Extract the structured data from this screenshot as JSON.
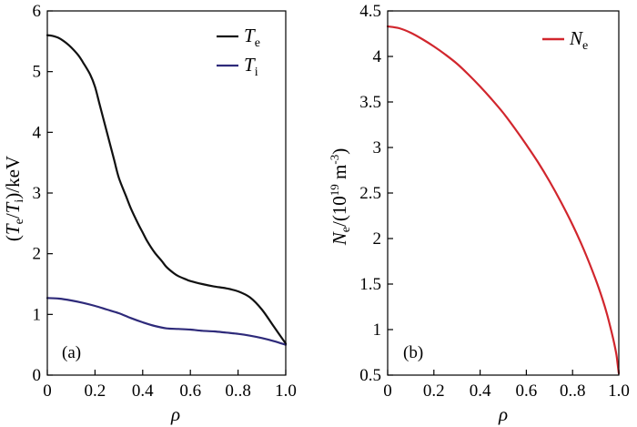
{
  "chart_data": [
    {
      "type": "line",
      "panel_label": "(a)",
      "xlabel": "ρ",
      "ylabel": "(Te/Ti)/keV",
      "ylabel_parts": {
        "open": "(",
        "t1": "T",
        "s1": "e",
        "slash": "/",
        "t2": "T",
        "s2": "i",
        "close": ")/keV"
      },
      "xlim": [
        0,
        1.0
      ],
      "ylim": [
        0,
        6
      ],
      "x_ticks": [
        0,
        0.2,
        0.4,
        0.6,
        0.8,
        1.0
      ],
      "x_tick_labels": [
        "0",
        "0.2",
        "0.4",
        "0.6",
        "0..8",
        "1.0"
      ],
      "y_ticks": [
        0,
        1,
        2,
        3,
        4,
        5,
        6
      ],
      "y_tick_labels": [
        "0",
        "1",
        "2",
        "3",
        "4",
        "5",
        "6"
      ],
      "grid": false,
      "legend_position": "top-right",
      "series": [
        {
          "name": "Te",
          "name_main": "T",
          "name_sub": "e",
          "color": "#111111",
          "x": [
            0,
            0.02,
            0.05,
            0.08,
            0.1,
            0.13,
            0.15,
            0.18,
            0.2,
            0.22,
            0.25,
            0.28,
            0.3,
            0.33,
            0.35,
            0.38,
            0.4,
            0.42,
            0.45,
            0.48,
            0.5,
            0.53,
            0.55,
            0.58,
            0.6,
            0.65,
            0.7,
            0.75,
            0.8,
            0.85,
            0.9,
            0.95,
            1.0
          ],
          "y": [
            5.6,
            5.59,
            5.55,
            5.47,
            5.4,
            5.27,
            5.15,
            4.95,
            4.75,
            4.45,
            4.0,
            3.55,
            3.25,
            2.95,
            2.75,
            2.5,
            2.35,
            2.2,
            2.02,
            1.88,
            1.78,
            1.68,
            1.63,
            1.58,
            1.55,
            1.5,
            1.46,
            1.43,
            1.38,
            1.28,
            1.08,
            0.8,
            0.52
          ]
        },
        {
          "name": "Ti",
          "name_main": "T",
          "name_sub": "i",
          "color": "#2e2a7a",
          "x": [
            0,
            0.05,
            0.1,
            0.15,
            0.2,
            0.25,
            0.3,
            0.35,
            0.4,
            0.45,
            0.5,
            0.55,
            0.6,
            0.65,
            0.7,
            0.75,
            0.8,
            0.85,
            0.9,
            0.95,
            1.0
          ],
          "y": [
            1.27,
            1.26,
            1.23,
            1.19,
            1.14,
            1.08,
            1.02,
            0.94,
            0.87,
            0.81,
            0.77,
            0.76,
            0.75,
            0.73,
            0.72,
            0.7,
            0.68,
            0.65,
            0.61,
            0.56,
            0.5
          ]
        }
      ]
    },
    {
      "type": "line",
      "panel_label": "(b)",
      "xlabel": "ρ",
      "ylabel": "Ne/(10^19 m^-3)",
      "ylabel_parts": {
        "t1": "N",
        "s1": "e",
        "mid": "/(10",
        "sup1": "19",
        "unit": " m",
        "sup2": "-3",
        "close": ")"
      },
      "xlim": [
        0,
        1.0
      ],
      "ylim": [
        0.5,
        4.5
      ],
      "x_ticks": [
        0,
        0.2,
        0.4,
        0.6,
        0.8,
        1.0
      ],
      "x_tick_labels": [
        "0",
        "0.2",
        "0.4",
        "0.6",
        "0..8",
        "1.0"
      ],
      "y_ticks": [
        0.5,
        1,
        1.5,
        2,
        2.5,
        3,
        3.5,
        4,
        4.5
      ],
      "y_tick_labels": [
        "0.5",
        "1",
        "1.5",
        "2",
        "2.5",
        "3",
        "3.5",
        "4",
        "4.5"
      ],
      "grid": false,
      "legend_position": "top-right",
      "series": [
        {
          "name": "Ne",
          "name_main": "N",
          "name_sub": "e",
          "color": "#d1262d",
          "x": [
            0,
            0.05,
            0.1,
            0.15,
            0.2,
            0.25,
            0.3,
            0.35,
            0.4,
            0.45,
            0.5,
            0.55,
            0.6,
            0.65,
            0.7,
            0.75,
            0.8,
            0.85,
            0.9,
            0.93,
            0.95,
            0.97,
            0.98,
            0.99,
            0.995,
            1.0
          ],
          "y": [
            4.33,
            4.31,
            4.26,
            4.19,
            4.11,
            4.02,
            3.92,
            3.8,
            3.67,
            3.53,
            3.38,
            3.21,
            3.03,
            2.84,
            2.63,
            2.4,
            2.15,
            1.87,
            1.55,
            1.33,
            1.16,
            0.96,
            0.85,
            0.72,
            0.62,
            0.52
          ]
        }
      ]
    }
  ]
}
